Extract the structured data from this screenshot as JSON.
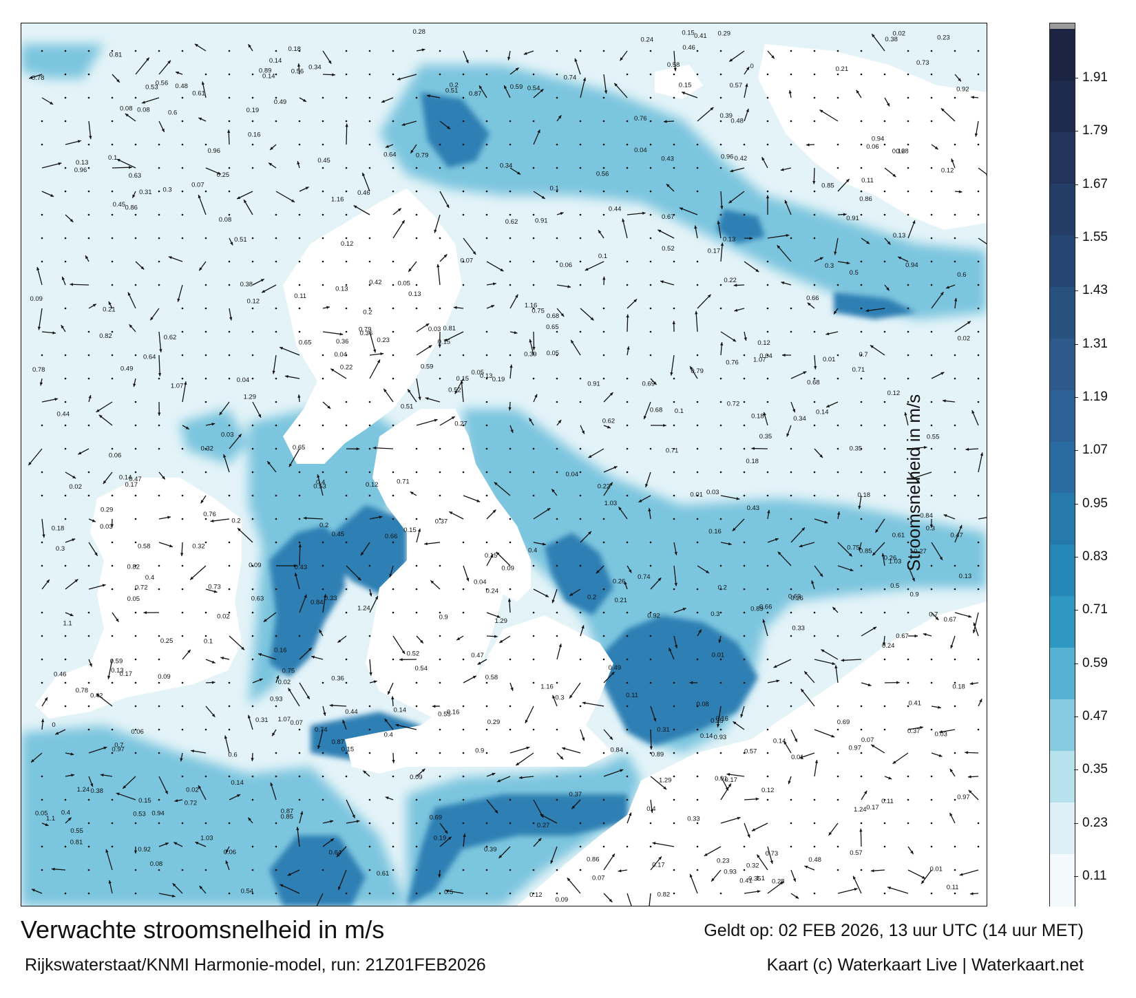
{
  "title": "Verwachte stroomsnelheid in m/s",
  "subtitle": "Rijkswaterstaat/KNMI Harmonie-model, run: 21Z01FEB2026",
  "valid_time": "Geldt op: 02 FEB 2026, 13 uur UTC (14 uur MET)",
  "credit": "Kaart (c) Waterkaart Live | Waterkaart.net",
  "colorbar": {
    "label": "Stroomsnelheid in m/s",
    "ticks": [
      "0.11",
      "0.23",
      "0.35",
      "0.47",
      "0.59",
      "0.71",
      "0.83",
      "0.95",
      "1.07",
      "1.19",
      "1.31",
      "1.43",
      "1.55",
      "1.67",
      "1.79",
      "1.91"
    ],
    "colors": [
      "#f4fafc",
      "#dcf0f6",
      "#b7e1ec",
      "#86cbe0",
      "#55b2d2",
      "#2e97c2",
      "#2587b6",
      "#2679ab",
      "#2a6ba1",
      "#2c6196",
      "#2d5a8a",
      "#27517e",
      "#254673",
      "#243d67",
      "#22345a",
      "#1f2b4d",
      "#1b2442"
    ],
    "top_color": "#9a9a9a"
  },
  "map": {
    "land_color": "#ffffff",
    "water_light": "#e3f3f8",
    "water_mid": "#7cc5de",
    "water_dark": "#2f7fb4",
    "arrow_color": "#111111"
  },
  "speed_labels": [
    {
      "text": "0.16"
    },
    {
      "text": "0.18"
    },
    {
      "text": "0.15"
    },
    {
      "text": "0.14"
    },
    {
      "text": "0.13"
    },
    {
      "text": "0.12"
    },
    {
      "text": "0.17"
    },
    {
      "text": "0.15"
    },
    {
      "text": "0.13"
    },
    {
      "text": "0.07"
    },
    {
      "text": "0.1"
    },
    {
      "text": "0.06"
    },
    {
      "text": "0.08"
    },
    {
      "text": "0.11"
    },
    {
      "text": "0.14"
    },
    {
      "text": "0.12"
    },
    {
      "text": "0.09"
    },
    {
      "text": "0.04"
    },
    {
      "text": "0.05"
    },
    {
      "text": "0.02"
    },
    {
      "text": "0.23"
    },
    {
      "text": "0.21"
    },
    {
      "text": "0.22"
    },
    {
      "text": "0.26"
    },
    {
      "text": "0.24"
    },
    {
      "text": "0.19"
    },
    {
      "text": "0.2"
    },
    {
      "text": "0.17"
    },
    {
      "text": "0.16"
    },
    {
      "text": "0.18"
    },
    {
      "text": "0.27"
    },
    {
      "text": "0.31"
    },
    {
      "text": "0.36"
    },
    {
      "text": "0.4"
    },
    {
      "text": "0.35"
    },
    {
      "text": "0.33"
    },
    {
      "text": "0.3"
    },
    {
      "text": "0.32"
    },
    {
      "text": "0.29"
    },
    {
      "text": "0.25"
    },
    {
      "text": "0.28"
    },
    {
      "text": "0.41"
    },
    {
      "text": "0.57"
    },
    {
      "text": "0.55"
    },
    {
      "text": "0.63"
    },
    {
      "text": "0.75"
    },
    {
      "text": "0.78"
    },
    {
      "text": "0.53"
    },
    {
      "text": "0.69"
    },
    {
      "text": "0.49"
    },
    {
      "text": "0.47"
    },
    {
      "text": "0.42"
    },
    {
      "text": "0.38"
    },
    {
      "text": "0.03"
    },
    {
      "text": "0.01"
    },
    {
      "text": "0.48"
    },
    {
      "text": "0.52"
    },
    {
      "text": "0.81"
    },
    {
      "text": "0.76"
    },
    {
      "text": "0.61"
    },
    {
      "text": "0.43"
    },
    {
      "text": "0.45"
    },
    {
      "text": "0.68"
    },
    {
      "text": "0.82"
    },
    {
      "text": "0.54"
    },
    {
      "text": "0.62"
    },
    {
      "text": "0.37"
    },
    {
      "text": "0.73"
    },
    {
      "text": "0.65"
    },
    {
      "text": "0.59"
    },
    {
      "text": "0.44"
    },
    {
      "text": "0.34"
    },
    {
      "text": "0.51"
    },
    {
      "text": "0.6"
    },
    {
      "text": "0.39"
    },
    {
      "text": "0.46"
    },
    {
      "text": "0.72"
    },
    {
      "text": "0.74"
    },
    {
      "text": "0.87"
    },
    {
      "text": "0.85"
    },
    {
      "text": "0.7"
    },
    {
      "text": "0.56"
    },
    {
      "text": "0.58"
    },
    {
      "text": "0.66"
    },
    {
      "text": "0.71"
    },
    {
      "text": "0.84"
    },
    {
      "text": "0.89"
    },
    {
      "text": "0.9"
    },
    {
      "text": "0.92"
    },
    {
      "text": "0.91"
    },
    {
      "text": "0.93"
    },
    {
      "text": "0.94"
    },
    {
      "text": "0.96"
    },
    {
      "text": "0.67"
    },
    {
      "text": "0.79"
    },
    {
      "text": "0.86"
    },
    {
      "text": "1.16"
    },
    {
      "text": "1.24"
    },
    {
      "text": "1.1"
    },
    {
      "text": "1.07"
    },
    {
      "text": "1.29"
    },
    {
      "text": "1.03"
    },
    {
      "text": "0.97"
    },
    {
      "text": "0.64"
    },
    {
      "text": "0.5"
    },
    {
      "text": "0.4"
    },
    {
      "text": "0.3"
    },
    {
      "text": "0.2"
    },
    {
      "text": "0.01"
    },
    {
      "text": "0.04"
    },
    {
      "text": "0.09"
    },
    {
      "text": "0.02"
    },
    {
      "text": "0.03"
    },
    {
      "text": "0.06"
    },
    {
      "text": "0.15"
    },
    {
      "text": "0.13"
    },
    {
      "text": "0.12"
    },
    {
      "text": "0.1"
    },
    {
      "text": "0.11"
    },
    {
      "text": "0.08"
    },
    {
      "text": "0"
    },
    {
      "text": "0.05"
    },
    {
      "text": "0.07"
    },
    {
      "text": "0.14"
    }
  ]
}
